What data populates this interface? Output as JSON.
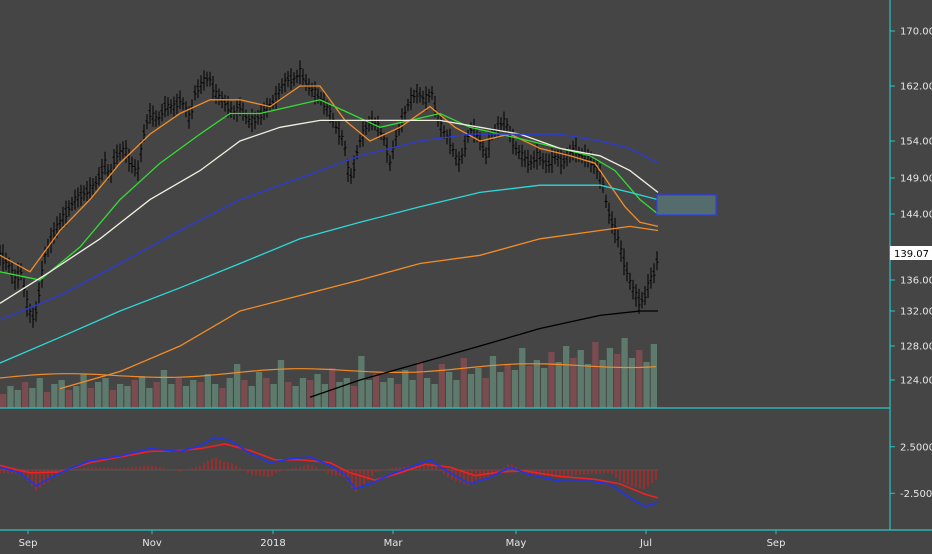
{
  "chart_data": [
    {
      "type": "candlestick",
      "panel": "price",
      "x_tick_labels": [
        "Sep",
        "Nov",
        "2018",
        "Mar",
        "May",
        "Jul",
        "Sep"
      ],
      "y_tick_labels": [
        "170.00",
        "162.00",
        "154.00",
        "149.00",
        "144.00",
        "136.00",
        "132.00",
        "128.00",
        "124.00"
      ],
      "y_ticks": [
        170,
        162,
        154,
        149,
        144,
        136,
        132,
        128,
        124
      ],
      "last_price_label": "139.07",
      "last_price": 139.07,
      "price_path": [
        [
          0,
          139
        ],
        [
          8,
          138
        ],
        [
          15,
          136
        ],
        [
          21,
          137
        ],
        [
          27,
          133
        ],
        [
          32,
          131
        ],
        [
          36,
          132
        ],
        [
          45,
          139
        ],
        [
          55,
          142
        ],
        [
          65,
          144
        ],
        [
          75,
          146
        ],
        [
          85,
          147
        ],
        [
          95,
          148
        ],
        [
          105,
          151
        ],
        [
          110,
          149
        ],
        [
          115,
          152
        ],
        [
          125,
          153
        ],
        [
          130,
          151
        ],
        [
          138,
          150
        ],
        [
          145,
          156
        ],
        [
          150,
          158
        ],
        [
          158,
          157
        ],
        [
          165,
          159
        ],
        [
          175,
          159
        ],
        [
          180,
          160
        ],
        [
          185,
          159
        ],
        [
          190,
          157
        ],
        [
          195,
          161
        ],
        [
          200,
          162
        ],
        [
          205,
          163
        ],
        [
          210,
          163
        ],
        [
          215,
          161
        ],
        [
          222,
          160
        ],
        [
          228,
          159
        ],
        [
          235,
          158
        ],
        [
          240,
          159
        ],
        [
          248,
          157
        ],
        [
          255,
          157
        ],
        [
          262,
          158
        ],
        [
          268,
          159
        ],
        [
          275,
          160
        ],
        [
          282,
          162
        ],
        [
          288,
          163
        ],
        [
          295,
          163
        ],
        [
          300,
          164
        ],
        [
          308,
          162
        ],
        [
          315,
          161
        ],
        [
          322,
          160
        ],
        [
          330,
          158
        ],
        [
          336,
          156
        ],
        [
          340,
          155
        ],
        [
          344,
          154
        ],
        [
          348,
          150
        ],
        [
          352,
          149
        ],
        [
          356,
          152
        ],
        [
          360,
          154
        ],
        [
          366,
          156
        ],
        [
          372,
          157
        ],
        [
          378,
          156
        ],
        [
          385,
          154
        ],
        [
          390,
          151
        ],
        [
          395,
          154
        ],
        [
          402,
          157
        ],
        [
          410,
          160
        ],
        [
          418,
          161
        ],
        [
          425,
          160
        ],
        [
          432,
          161
        ],
        [
          438,
          157
        ],
        [
          445,
          155
        ],
        [
          450,
          154
        ],
        [
          455,
          152
        ],
        [
          460,
          151
        ],
        [
          466,
          154
        ],
        [
          472,
          156
        ],
        [
          480,
          154
        ],
        [
          486,
          152
        ],
        [
          492,
          155
        ],
        [
          498,
          156
        ],
        [
          505,
          157
        ],
        [
          510,
          155
        ],
        [
          516,
          153
        ],
        [
          522,
          152
        ],
        [
          530,
          151
        ],
        [
          538,
          152
        ],
        [
          545,
          151
        ],
        [
          550,
          151
        ],
        [
          556,
          152
        ],
        [
          562,
          151
        ],
        [
          568,
          152
        ],
        [
          575,
          153
        ],
        [
          580,
          152
        ],
        [
          586,
          152
        ],
        [
          592,
          151
        ],
        [
          598,
          150
        ],
        [
          603,
          148
        ],
        [
          607,
          145
        ],
        [
          612,
          143
        ],
        [
          618,
          141
        ],
        [
          622,
          139
        ],
        [
          627,
          137
        ],
        [
          632,
          135
        ],
        [
          636,
          134
        ],
        [
          640,
          133
        ],
        [
          645,
          134
        ],
        [
          650,
          136
        ],
        [
          655,
          137
        ],
        [
          658,
          139
        ]
      ],
      "volume": [
        14,
        22,
        18,
        26,
        20,
        30,
        16,
        24,
        28,
        18,
        22,
        34,
        20,
        26,
        30,
        18,
        24,
        22,
        28,
        32,
        20,
        26,
        38,
        24,
        30,
        22,
        28,
        26,
        34,
        24,
        20,
        30,
        44,
        28,
        22,
        36,
        30,
        24,
        48,
        26,
        22,
        30,
        28,
        34,
        24,
        40,
        26,
        30,
        22,
        52,
        28,
        34,
        26,
        30,
        24,
        38,
        28,
        46,
        30,
        24,
        44,
        36,
        28,
        50,
        34,
        40,
        30,
        52,
        36,
        44,
        38,
        60,
        42,
        48,
        40,
        56,
        46,
        62,
        50,
        58,
        44,
        66,
        48,
        60,
        54,
        70,
        50,
        58,
        46,
        64
      ],
      "indicators": [
        {
          "label": "ma-10",
          "color": "#f28c28",
          "values": [
            [
              0,
              139
            ],
            [
              30,
              137
            ],
            [
              60,
              142
            ],
            [
              90,
              146
            ],
            [
              120,
              151
            ],
            [
              150,
              155
            ],
            [
              180,
              158
            ],
            [
              210,
              160
            ],
            [
              240,
              160
            ],
            [
              270,
              159
            ],
            [
              300,
              162
            ],
            [
              320,
              162
            ],
            [
              345,
              157
            ],
            [
              370,
              154
            ],
            [
              400,
              156
            ],
            [
              430,
              159
            ],
            [
              455,
              156
            ],
            [
              480,
              154
            ],
            [
              510,
              155
            ],
            [
              540,
              153
            ],
            [
              570,
              152
            ],
            [
              595,
              151
            ],
            [
              610,
              148
            ],
            [
              625,
              145
            ],
            [
              640,
              143
            ],
            [
              658,
              142.5
            ]
          ]
        },
        {
          "label": "ma-20",
          "color": "#33dd33",
          "values": [
            [
              0,
              137
            ],
            [
              40,
              136
            ],
            [
              80,
              140
            ],
            [
              120,
              146
            ],
            [
              160,
              151
            ],
            [
              200,
              155
            ],
            [
              230,
              158
            ],
            [
              260,
              158
            ],
            [
              290,
              159
            ],
            [
              320,
              160
            ],
            [
              350,
              158
            ],
            [
              380,
              156
            ],
            [
              410,
              157
            ],
            [
              440,
              158
            ],
            [
              470,
              156
            ],
            [
              500,
              155
            ],
            [
              530,
              154
            ],
            [
              560,
              153
            ],
            [
              590,
              152
            ],
            [
              615,
              150
            ],
            [
              640,
              146
            ],
            [
              658,
              144
            ]
          ]
        },
        {
          "label": "ma-50",
          "color": "#f0f0e0",
          "values": [
            [
              0,
              133
            ],
            [
              50,
              137
            ],
            [
              100,
              141
            ],
            [
              150,
              146
            ],
            [
              200,
              150
            ],
            [
              240,
              154
            ],
            [
              280,
              156
            ],
            [
              320,
              157
            ],
            [
              360,
              157
            ],
            [
              400,
              157
            ],
            [
              440,
              157
            ],
            [
              480,
              156
            ],
            [
              520,
              155
            ],
            [
              560,
              153
            ],
            [
              600,
              152
            ],
            [
              630,
              150
            ],
            [
              658,
              147
            ]
          ]
        },
        {
          "label": "ma-100",
          "color": "#2b3bd6",
          "values": [
            [
              0,
              131
            ],
            [
              60,
              134
            ],
            [
              120,
              138
            ],
            [
              180,
              142
            ],
            [
              240,
              146
            ],
            [
              300,
              149
            ],
            [
              360,
              152
            ],
            [
              420,
              154
            ],
            [
              470,
              155
            ],
            [
              520,
              155
            ],
            [
              560,
              155
            ],
            [
              600,
              154
            ],
            [
              630,
              153
            ],
            [
              658,
              151
            ]
          ]
        },
        {
          "label": "ma-150",
          "color": "#2dd8d8",
          "values": [
            [
              0,
              126
            ],
            [
              60,
              129
            ],
            [
              120,
              132
            ],
            [
              180,
              135
            ],
            [
              240,
              138
            ],
            [
              300,
              141
            ],
            [
              360,
              143
            ],
            [
              420,
              145
            ],
            [
              480,
              147
            ],
            [
              540,
              148
            ],
            [
              600,
              148
            ],
            [
              630,
              147
            ],
            [
              658,
              146
            ]
          ]
        },
        {
          "label": "ma-200",
          "color": "#f28c28",
          "values": [
            [
              60,
              123
            ],
            [
              120,
              125
            ],
            [
              180,
              128
            ],
            [
              240,
              132
            ],
            [
              300,
              134
            ],
            [
              360,
              136
            ],
            [
              420,
              138
            ],
            [
              480,
              139
            ],
            [
              540,
              141
            ],
            [
              600,
              142
            ],
            [
              630,
              142.5
            ],
            [
              658,
              142
            ]
          ]
        },
        {
          "label": "ma-400",
          "color": "#000000",
          "values": [
            [
              310,
              122
            ],
            [
              360,
              124
            ],
            [
              420,
              126
            ],
            [
              480,
              128
            ],
            [
              540,
              130
            ],
            [
              600,
              131.5
            ],
            [
              640,
              132
            ],
            [
              658,
              132
            ]
          ]
        }
      ],
      "highlight_zone": {
        "y_low": 144.5,
        "y_high": 146.5
      }
    },
    {
      "type": "macd",
      "panel": "oscillator",
      "y_tick_labels": [
        "2.5000",
        "-2.5000"
      ],
      "y_ticks": [
        2.5,
        -2.5
      ],
      "macd_line": {
        "color": "#2233ee",
        "values": [
          [
            0,
            0.3
          ],
          [
            20,
            -0.3
          ],
          [
            36,
            -1.7
          ],
          [
            60,
            -0.3
          ],
          [
            90,
            1.0
          ],
          [
            120,
            1.5
          ],
          [
            150,
            2.3
          ],
          [
            180,
            2.0
          ],
          [
            200,
            2.6
          ],
          [
            215,
            3.5
          ],
          [
            230,
            3.2
          ],
          [
            250,
            1.8
          ],
          [
            270,
            0.8
          ],
          [
            290,
            1.2
          ],
          [
            310,
            1.4
          ],
          [
            330,
            0.5
          ],
          [
            345,
            -0.5
          ],
          [
            355,
            -2.0
          ],
          [
            370,
            -1.5
          ],
          [
            390,
            -0.5
          ],
          [
            410,
            0.3
          ],
          [
            430,
            1.1
          ],
          [
            445,
            0.0
          ],
          [
            470,
            -1.5
          ],
          [
            490,
            -0.8
          ],
          [
            510,
            0.3
          ],
          [
            530,
            -0.5
          ],
          [
            560,
            -1.2
          ],
          [
            590,
            -1.2
          ],
          [
            610,
            -1.5
          ],
          [
            630,
            -3.0
          ],
          [
            645,
            -3.9
          ],
          [
            658,
            -3.5
          ]
        ]
      },
      "signal_line": {
        "color": "#ee2222",
        "values": [
          [
            0,
            0.5
          ],
          [
            30,
            -0.3
          ],
          [
            60,
            -0.2
          ],
          [
            90,
            0.8
          ],
          [
            120,
            1.4
          ],
          [
            150,
            2.0
          ],
          [
            180,
            2.1
          ],
          [
            200,
            2.3
          ],
          [
            225,
            2.8
          ],
          [
            250,
            2.1
          ],
          [
            275,
            1.1
          ],
          [
            300,
            1.1
          ],
          [
            330,
            0.8
          ],
          [
            350,
            -0.3
          ],
          [
            375,
            -1.1
          ],
          [
            400,
            -0.3
          ],
          [
            425,
            0.6
          ],
          [
            450,
            0.3
          ],
          [
            475,
            -0.6
          ],
          [
            500,
            -0.2
          ],
          [
            525,
            -0.1
          ],
          [
            560,
            -0.7
          ],
          [
            595,
            -1.0
          ],
          [
            620,
            -1.5
          ],
          [
            645,
            -2.6
          ],
          [
            658,
            -3.0
          ]
        ]
      }
    }
  ]
}
